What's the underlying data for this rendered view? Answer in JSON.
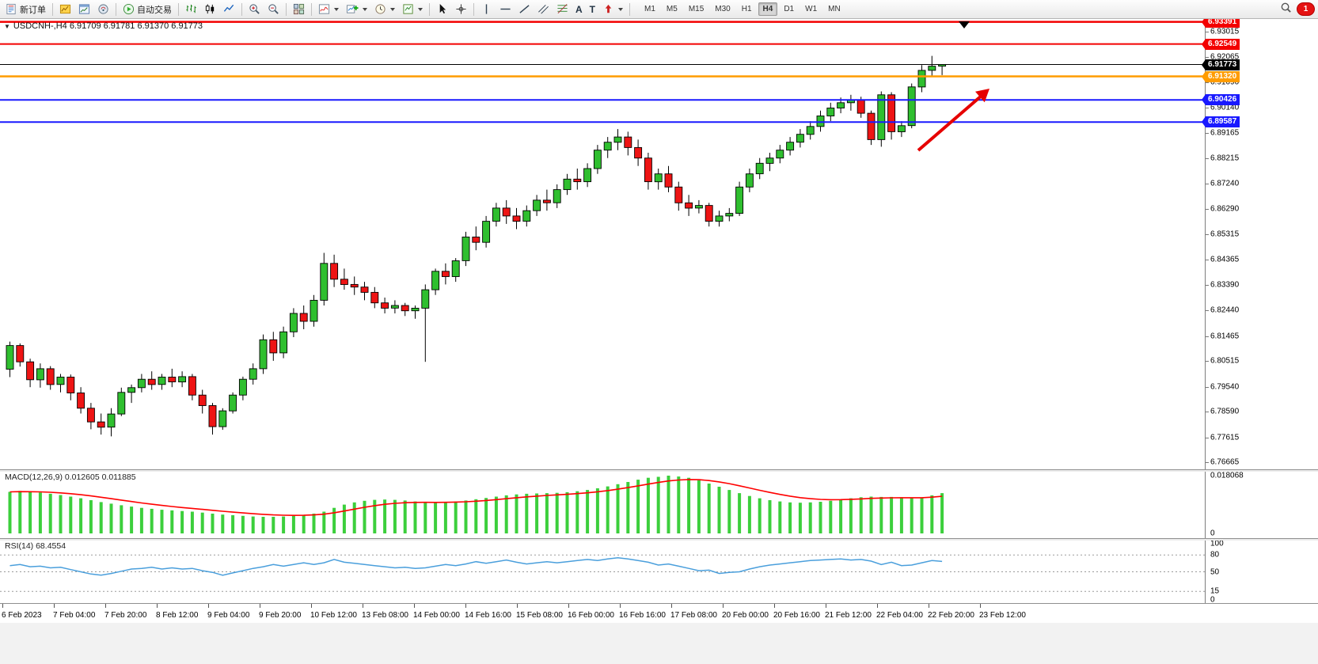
{
  "colors": {
    "bull": "#2fbf2f",
    "bear": "#ee1414",
    "wick": "#000000",
    "macd_hist": "#3ccf3c",
    "macd_signal": "#ff0000",
    "rsi_line": "#4a9fdc",
    "arrow": "#e60000",
    "bid_line": "#000000"
  },
  "toolbar": {
    "new_order_label": "新订单",
    "autotrading_label": "自动交易",
    "timeframe_label_group": [
      "M1",
      "M5",
      "M15",
      "M30",
      "H1",
      "H4",
      "D1",
      "W1",
      "MN"
    ],
    "active_timeframe": "H4",
    "notification_count": "1",
    "icons": [
      "new-order",
      "charts-grid",
      "new-chart",
      "market-watch",
      "autotrading-play",
      "bar-chart",
      "candlestick-chart",
      "line-chart",
      "zoom-in",
      "zoom-out",
      "tile-windows",
      "indicators",
      "add-indicator",
      "periods-clock",
      "templates",
      "cursor",
      "crosshair",
      "vertical-line",
      "horizontal-line",
      "trendline",
      "channel",
      "fibonacci",
      "text",
      "text-label",
      "arrows",
      "search",
      "notification"
    ]
  },
  "chart": {
    "title": "USDCNH-,H4 6.91709 6.91781 6.91370 6.91773",
    "symbol": "USDCNH-",
    "period": "H4",
    "open": "6.91709",
    "high": "6.91781",
    "low": "6.91370",
    "close": "6.91773"
  },
  "price_axis_labels": [
    "6.93015",
    "6.92065",
    "6.91090",
    "6.90140",
    "6.89165",
    "6.88215",
    "6.87240",
    "6.86290",
    "6.85315",
    "6.84365",
    "6.83390",
    "6.82440",
    "6.81465",
    "6.80515",
    "6.79540",
    "6.78590",
    "6.77615",
    "6.76665"
  ],
  "levels": [
    {
      "label": "6.93391",
      "value": 6.93391,
      "color": "#f30000",
      "width": 2.5,
      "kind": "resistance"
    },
    {
      "label": "6.92549",
      "value": 6.92549,
      "color": "#f30000",
      "width": 2,
      "kind": "resistance"
    },
    {
      "label": "6.91773",
      "value": 6.91773,
      "color": "#000000",
      "width": 1,
      "kind": "bid"
    },
    {
      "label": "6.91320",
      "value": 6.9132,
      "color": "#ff9c00",
      "width": 2.5,
      "kind": "level"
    },
    {
      "label": "6.90426",
      "value": 6.90426,
      "color": "#1919ff",
      "width": 2,
      "kind": "support"
    },
    {
      "label": "6.89587",
      "value": 6.89587,
      "color": "#1919ff",
      "width": 2,
      "kind": "support"
    }
  ],
  "macd_panel": {
    "label": "MACD(12,26,9) 0.012605 0.011885",
    "axis_top": "0.018068",
    "axis_bottom": "0"
  },
  "rsi_panel": {
    "label": "RSI(14) 68.4554",
    "axis_labels": [
      "100",
      "80",
      "50",
      "15",
      "0"
    ],
    "level_lines": [
      80,
      50,
      15
    ]
  },
  "time_axis_labels": [
    "6 Feb 2023",
    "7 Feb 04:00",
    "7 Feb 20:00",
    "8 Feb 12:00",
    "9 Feb 04:00",
    "9 Feb 20:00",
    "10 Feb 12:00",
    "13 Feb 08:00",
    "14 Feb 00:00",
    "14 Feb 16:00",
    "15 Feb 08:00",
    "16 Feb 00:00",
    "16 Feb 16:00",
    "17 Feb 08:00",
    "20 Feb 00:00",
    "20 Feb 16:00",
    "21 Feb 12:00",
    "22 Feb 04:00",
    "22 Feb 20:00",
    "23 Feb 12:00"
  ],
  "chart_data": [
    {
      "type": "candlestick",
      "title": "USDCNH- H4",
      "ylim": [
        6.764,
        6.935
      ],
      "candles": [
        [
          6.802,
          6.8125,
          6.799,
          6.811
        ],
        [
          6.811,
          6.8118,
          6.803,
          6.8048
        ],
        [
          6.8048,
          6.806,
          6.7952,
          6.798
        ],
        [
          6.798,
          6.8042,
          6.795,
          6.8022
        ],
        [
          6.8022,
          6.8032,
          6.7942,
          6.7962
        ],
        [
          6.7962,
          6.8002,
          6.7932,
          6.799
        ],
        [
          6.799,
          6.8,
          6.7902,
          6.793
        ],
        [
          6.793,
          6.7952,
          6.7852,
          6.7872
        ],
        [
          6.7872,
          6.7892,
          6.7792,
          6.782
        ],
        [
          6.782,
          6.7852,
          6.7772,
          6.78
        ],
        [
          6.78,
          6.7872,
          6.7765,
          6.785
        ],
        [
          6.785,
          6.795,
          6.7842,
          6.7932
        ],
        [
          6.7932,
          6.7962,
          6.7892,
          6.795
        ],
        [
          6.795,
          6.8002,
          6.7932,
          6.7982
        ],
        [
          6.7982,
          6.8012,
          6.7942,
          6.7962
        ],
        [
          6.7962,
          6.8002,
          6.7942,
          6.799
        ],
        [
          6.799,
          6.8022,
          6.7952,
          6.7972
        ],
        [
          6.7972,
          6.8012,
          6.7952,
          6.7992
        ],
        [
          6.7992,
          6.8002,
          6.7902,
          6.7922
        ],
        [
          6.7922,
          6.7942,
          6.7852,
          6.7882
        ],
        [
          6.7882,
          6.7892,
          6.7772,
          6.7802
        ],
        [
          6.7802,
          6.7872,
          6.779,
          6.7862
        ],
        [
          6.7862,
          6.7932,
          6.7852,
          6.7922
        ],
        [
          6.7922,
          6.7992,
          6.7902,
          6.7982
        ],
        [
          6.7982,
          6.8042,
          6.7962,
          6.8022
        ],
        [
          6.8022,
          6.8152,
          6.8002,
          6.8132
        ],
        [
          6.8132,
          6.8162,
          6.8052,
          6.8082
        ],
        [
          6.8082,
          6.8182,
          6.8062,
          6.8162
        ],
        [
          6.8162,
          6.8252,
          6.8142,
          6.8232
        ],
        [
          6.8232,
          6.8262,
          6.8172,
          6.8202
        ],
        [
          6.8202,
          6.8302,
          6.8182,
          6.8282
        ],
        [
          6.8282,
          6.8462,
          6.8262,
          6.8422
        ],
        [
          6.8422,
          6.8455,
          6.8332,
          6.8362
        ],
        [
          6.8362,
          6.8402,
          6.8322,
          6.8342
        ],
        [
          6.8342,
          6.8372,
          6.8302,
          6.8332
        ],
        [
          6.8332,
          6.8352,
          6.8282,
          6.8312
        ],
        [
          6.8312,
          6.8332,
          6.8252,
          6.8272
        ],
        [
          6.8272,
          6.8292,
          6.8232,
          6.8252
        ],
        [
          6.8252,
          6.8282,
          6.8232,
          6.8262
        ],
        [
          6.8262,
          6.8272,
          6.8222,
          6.8242
        ],
        [
          6.8242,
          6.8262,
          6.8212,
          6.8252
        ],
        [
          6.8252,
          6.8342,
          6.8048,
          6.8322
        ],
        [
          6.8322,
          6.8402,
          6.8302,
          6.8392
        ],
        [
          6.8392,
          6.8422,
          6.8342,
          6.8372
        ],
        [
          6.8372,
          6.8442,
          6.8352,
          6.8432
        ],
        [
          6.8432,
          6.8542,
          6.8412,
          6.8522
        ],
        [
          6.8522,
          6.8562,
          6.8472,
          6.8502
        ],
        [
          6.8502,
          6.8602,
          6.8482,
          6.8582
        ],
        [
          6.8582,
          6.8652,
          6.8562,
          6.8632
        ],
        [
          6.8632,
          6.8662,
          6.8572,
          6.8602
        ],
        [
          6.8602,
          6.8632,
          6.8552,
          6.8582
        ],
        [
          6.8582,
          6.8642,
          6.8562,
          6.8622
        ],
        [
          6.8622,
          6.8682,
          6.8602,
          6.8662
        ],
        [
          6.8662,
          6.8702,
          6.8622,
          6.8652
        ],
        [
          6.8652,
          6.8722,
          6.8632,
          6.8702
        ],
        [
          6.8702,
          6.8762,
          6.8682,
          6.8742
        ],
        [
          6.8742,
          6.8782,
          6.8702,
          6.8732
        ],
        [
          6.8732,
          6.8802,
          6.8712,
          6.8782
        ],
        [
          6.8782,
          6.8872,
          6.8762,
          6.8852
        ],
        [
          6.8852,
          6.8902,
          6.8822,
          6.8882
        ],
        [
          6.8882,
          6.8932,
          6.8852,
          6.8902
        ],
        [
          6.8902,
          6.8922,
          6.8832,
          6.8862
        ],
        [
          6.8862,
          6.8892,
          6.8792,
          6.8822
        ],
        [
          6.8822,
          6.8842,
          6.8702,
          6.8732
        ],
        [
          6.8732,
          6.8782,
          6.8702,
          6.8762
        ],
        [
          6.8762,
          6.8792,
          6.8692,
          6.8712
        ],
        [
          6.8712,
          6.8732,
          6.8622,
          6.8652
        ],
        [
          6.8652,
          6.8682,
          6.8602,
          6.8632
        ],
        [
          6.8632,
          6.8662,
          6.8612,
          6.8642
        ],
        [
          6.8642,
          6.8652,
          6.8562,
          6.8582
        ],
        [
          6.8582,
          6.8622,
          6.8562,
          6.8602
        ],
        [
          6.8602,
          6.8632,
          6.8582,
          6.8612
        ],
        [
          6.8612,
          6.8732,
          6.8602,
          6.8712
        ],
        [
          6.8712,
          6.8782,
          6.8692,
          6.8762
        ],
        [
          6.8762,
          6.8822,
          6.8742,
          6.8802
        ],
        [
          6.8802,
          6.8842,
          6.8772,
          6.8822
        ],
        [
          6.8822,
          6.8872,
          6.8802,
          6.8852
        ],
        [
          6.8852,
          6.8902,
          6.8832,
          6.8882
        ],
        [
          6.8882,
          6.8932,
          6.8862,
          6.8912
        ],
        [
          6.8912,
          6.8962,
          6.8892,
          6.8942
        ],
        [
          6.8942,
          6.9002,
          6.8922,
          6.8982
        ],
        [
          6.8982,
          6.9032,
          6.8962,
          6.9012
        ],
        [
          6.9012,
          6.9052,
          6.8992,
          6.9032
        ],
        [
          6.9032,
          6.9062,
          6.9002,
          6.9042
        ],
        [
          6.9042,
          6.9055,
          6.8975,
          6.8992
        ],
        [
          6.8992,
          6.9002,
          6.8872,
          6.8892
        ],
        [
          6.8892,
          6.9075,
          6.8865,
          6.9062
        ],
        [
          6.9062,
          6.9072,
          6.8892,
          6.8922
        ],
        [
          6.8922,
          6.8962,
          6.8902,
          6.8945
        ],
        [
          6.8945,
          6.9105,
          6.8935,
          6.9092
        ],
        [
          6.9092,
          6.9175,
          6.9072,
          6.9155
        ],
        [
          6.9155,
          6.921,
          6.913,
          6.9171
        ],
        [
          6.91709,
          6.91781,
          6.9137,
          6.91773
        ]
      ]
    },
    {
      "type": "bar",
      "name": "MACD histogram",
      "ylim": [
        0,
        0.018068
      ],
      "values": [
        0.013,
        0.0133,
        0.013,
        0.0128,
        0.0124,
        0.012,
        0.0115,
        0.011,
        0.0104,
        0.0098,
        0.0093,
        0.0088,
        0.0084,
        0.008,
        0.0077,
        0.0074,
        0.0072,
        0.007,
        0.0068,
        0.0065,
        0.0062,
        0.0059,
        0.0057,
        0.0055,
        0.0053,
        0.0052,
        0.0052,
        0.0053,
        0.0055,
        0.0058,
        0.0062,
        0.0068,
        0.008,
        0.009,
        0.0097,
        0.0102,
        0.0105,
        0.0106,
        0.0105,
        0.0103,
        0.01,
        0.0098,
        0.0097,
        0.0098,
        0.01,
        0.0103,
        0.0107,
        0.0111,
        0.0115,
        0.0119,
        0.0122,
        0.0124,
        0.0125,
        0.0126,
        0.0127,
        0.0129,
        0.0132,
        0.0136,
        0.0141,
        0.0147,
        0.0154,
        0.0161,
        0.0168,
        0.0174,
        0.0177,
        0.01807,
        0.0178,
        0.0174,
        0.0166,
        0.0156,
        0.0146,
        0.0136,
        0.0126,
        0.0117,
        0.011,
        0.0104,
        0.01,
        0.0097,
        0.0096,
        0.0097,
        0.0099,
        0.0102,
        0.0106,
        0.011,
        0.0113,
        0.0115,
        0.0114,
        0.0114,
        0.0113,
        0.0111,
        0.0112,
        0.0119,
        0.012605
      ]
    },
    {
      "type": "line",
      "name": "RSI(14)",
      "ylim": [
        0,
        100
      ],
      "values": [
        61,
        63,
        59,
        60,
        57,
        58,
        54,
        50,
        46,
        44,
        47,
        51,
        55,
        56,
        58,
        55,
        57,
        55,
        56,
        52,
        49,
        44,
        48,
        52,
        56,
        59,
        63,
        60,
        63,
        66,
        63,
        66,
        72,
        67,
        65,
        63,
        61,
        59,
        57,
        58,
        56,
        57,
        60,
        63,
        61,
        64,
        68,
        65,
        68,
        71,
        67,
        64,
        66,
        68,
        66,
        68,
        70,
        72,
        70,
        73,
        75,
        73,
        70,
        67,
        62,
        64,
        60,
        56,
        52,
        53,
        47,
        49,
        50,
        55,
        59,
        62,
        64,
        66,
        68,
        70,
        71,
        72,
        73,
        71,
        72,
        69,
        63,
        67,
        61,
        62,
        66,
        70,
        68.4554
      ]
    }
  ]
}
